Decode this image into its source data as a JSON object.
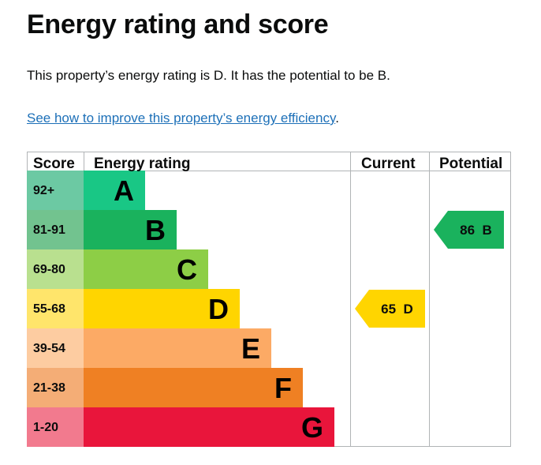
{
  "page": {
    "title": "Energy rating and score",
    "summary": "This property’s energy rating is D. It has the potential to be B.",
    "link_text": "See how to improve this property’s energy efficiency",
    "link_suffix": "."
  },
  "chart_data": {
    "type": "bar",
    "title": "",
    "columns": {
      "score": "Score",
      "rating": "Energy rating",
      "current": "Current",
      "potential": "Potential"
    },
    "bands": [
      {
        "letter": "A",
        "range": "92+",
        "color": "#19c785",
        "score_color": "#6cc9a3"
      },
      {
        "letter": "B",
        "range": "81-91",
        "color": "#1ab25d",
        "score_color": "#72c38f"
      },
      {
        "letter": "C",
        "range": "69-80",
        "color": "#8dce46",
        "score_color": "#b9e08f"
      },
      {
        "letter": "D",
        "range": "55-68",
        "color": "#ffd500",
        "score_color": "#ffe56b"
      },
      {
        "letter": "E",
        "range": "39-54",
        "color": "#fcaa65",
        "score_color": "#fdcca1"
      },
      {
        "letter": "F",
        "range": "21-38",
        "color": "#ef8023",
        "score_color": "#f4ad76"
      },
      {
        "letter": "G",
        "range": "1-20",
        "color": "#e9153b",
        "score_color": "#f27a8e"
      }
    ],
    "current": {
      "score": 65,
      "band": "D",
      "label": "65 D",
      "color": "#ffd500"
    },
    "potential": {
      "score": 86,
      "band": "B",
      "label": "86 B",
      "color": "#1ab25d"
    }
  }
}
